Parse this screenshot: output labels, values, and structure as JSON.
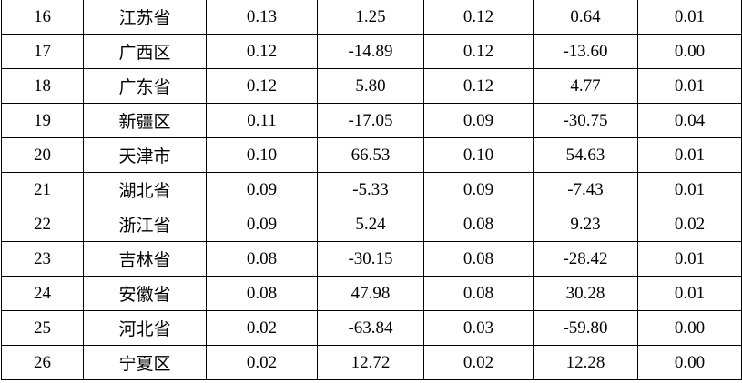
{
  "table": {
    "rows": [
      [
        "16",
        "江苏省",
        "0.13",
        "1.25",
        "0.12",
        "0.64",
        "0.01"
      ],
      [
        "17",
        "广西区",
        "0.12",
        "-14.89",
        "0.12",
        "-13.60",
        "0.00"
      ],
      [
        "18",
        "广东省",
        "0.12",
        "5.80",
        "0.12",
        "4.77",
        "0.01"
      ],
      [
        "19",
        "新疆区",
        "0.11",
        "-17.05",
        "0.09",
        "-30.75",
        "0.04"
      ],
      [
        "20",
        "天津市",
        "0.10",
        "66.53",
        "0.10",
        "54.63",
        "0.01"
      ],
      [
        "21",
        "湖北省",
        "0.09",
        "-5.33",
        "0.09",
        "-7.43",
        "0.01"
      ],
      [
        "22",
        "浙江省",
        "0.09",
        "5.24",
        "0.08",
        "9.23",
        "0.02"
      ],
      [
        "23",
        "吉林省",
        "0.08",
        "-30.15",
        "0.08",
        "-28.42",
        "0.01"
      ],
      [
        "24",
        "安徽省",
        "0.08",
        "47.98",
        "0.08",
        "30.28",
        "0.01"
      ],
      [
        "25",
        "河北省",
        "0.02",
        "-63.84",
        "0.03",
        "-59.80",
        "0.00"
      ],
      [
        "26",
        "宁夏区",
        "0.02",
        "12.72",
        "0.02",
        "12.28",
        "0.00"
      ]
    ]
  }
}
